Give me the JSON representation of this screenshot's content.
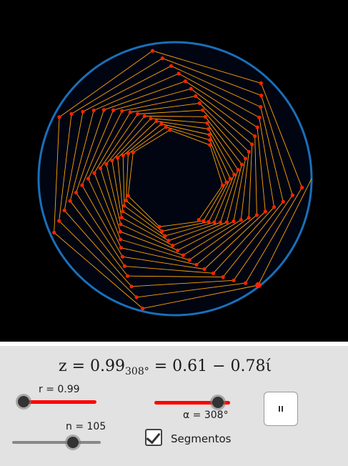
{
  "formula": {
    "lhs": "z = 0.99",
    "sub": "308°",
    "rhs": " = 0.61 − 0.78ί"
  },
  "sliders": {
    "r": {
      "label": "r = 0.99",
      "value": 0.99,
      "min": 0,
      "max": 1,
      "color": "#ff0000"
    },
    "alpha": {
      "label": "α = 308°",
      "value": 308,
      "min": 0,
      "max": 360,
      "color": "#ff0000"
    },
    "n": {
      "label": "n = 105",
      "value": 105,
      "min": 0,
      "max": 150,
      "color": "#888888"
    }
  },
  "checkbox": {
    "label": "Segmentos",
    "checked": true
  },
  "play_button": {
    "icon": "pause-icon"
  },
  "figure": {
    "circle_color": "#1a6fb8",
    "segment_color": "#ffa500",
    "point_color": "#ff2200",
    "inner_fill": "#000511",
    "r": 0.99,
    "alpha_deg": 308,
    "n": 105
  }
}
